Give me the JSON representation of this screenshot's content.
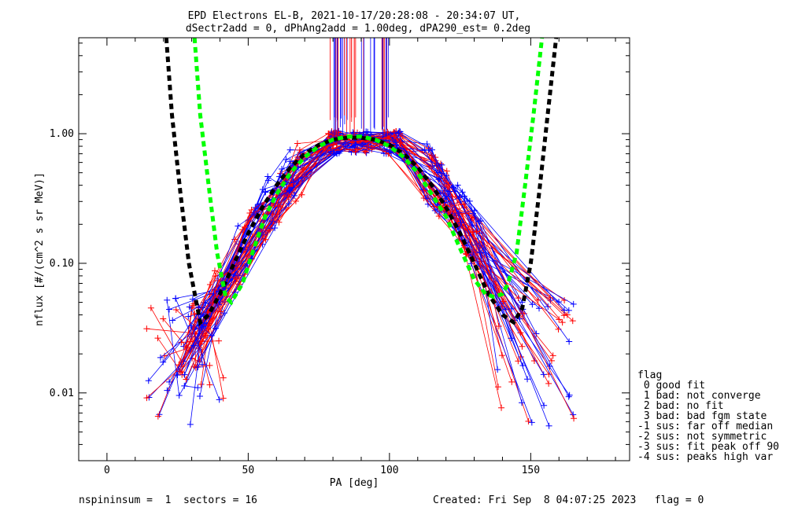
{
  "chart_data": {
    "type": "line",
    "title": "EPD Electrons EL-B, 2021-10-17/20:28:08 - 20:34:07 UT,",
    "subtitle": "dSectr2add = 0, dPhAng2add = 1.00deg, dPA290_est=   0.2deg",
    "xlabel": "PA [deg]",
    "ylabel": "nflux [#/(cm^2 s sr MeV)]",
    "xlim": [
      -10,
      185
    ],
    "ylim": [
      0.003,
      5.5
    ],
    "yscale": "log",
    "grid": false,
    "x_ticks": [
      {
        "value": 0,
        "label": "0"
      },
      {
        "value": 50,
        "label": "50"
      },
      {
        "value": 100,
        "label": "100"
      },
      {
        "value": 150,
        "label": "150"
      }
    ],
    "y_ticks": [
      {
        "value": 0.01,
        "label": "0.01"
      },
      {
        "value": 0.1,
        "label": "0.10"
      },
      {
        "value": 1.0,
        "label": "1.00"
      }
    ],
    "series": [
      {
        "color": "#000000",
        "style": "dashed-thick",
        "x": [
          21,
          23,
          26,
          29,
          33,
          36,
          40,
          45,
          50,
          55,
          60,
          65,
          70,
          75,
          80,
          85,
          90,
          95,
          100,
          105,
          110,
          115,
          120,
          125,
          130,
          135,
          140,
          144,
          147,
          150,
          153,
          156,
          159
        ],
        "y": [
          5.5,
          1.4,
          0.35,
          0.1,
          0.035,
          0.04,
          0.058,
          0.1,
          0.17,
          0.27,
          0.4,
          0.55,
          0.7,
          0.82,
          0.9,
          0.93,
          0.93,
          0.9,
          0.82,
          0.7,
          0.55,
          0.4,
          0.27,
          0.17,
          0.1,
          0.058,
          0.04,
          0.035,
          0.045,
          0.1,
          0.35,
          1.4,
          5.5
        ]
      },
      {
        "color": "#00ff00",
        "style": "dashed-thick",
        "x": [
          31,
          33,
          36,
          39,
          42,
          44,
          48,
          52,
          56,
          60,
          65,
          70,
          75,
          80,
          85,
          90,
          95,
          100,
          105,
          110,
          115,
          120,
          125,
          130,
          134,
          137,
          140,
          142,
          145,
          148,
          151,
          154
        ],
        "y": [
          5.5,
          1.4,
          0.4,
          0.12,
          0.055,
          0.05,
          0.07,
          0.13,
          0.23,
          0.34,
          0.5,
          0.66,
          0.8,
          0.9,
          0.95,
          0.95,
          0.9,
          0.8,
          0.66,
          0.5,
          0.34,
          0.23,
          0.13,
          0.075,
          0.058,
          0.055,
          0.058,
          0.07,
          0.12,
          0.4,
          1.4,
          5.5
        ]
      }
    ],
    "spectra_colors": [
      "#ff0000",
      "#0000ff"
    ],
    "legend": {
      "title": "flag",
      "items": [
        " 0 good fit",
        " 1 bad: not converge",
        " 2 bad: no fit",
        " 3 bad: bad fgm state",
        "-1 sus: far off median",
        "-2 sus: not symmetric",
        "-3 sus: fit peak off 90",
        "-4 sus: peaks high var"
      ]
    }
  },
  "footer": {
    "left": "nspininsum =  1  sectors = 16",
    "right": "Created: Fri Sep  8 04:07:25 2023   flag = 0"
  }
}
